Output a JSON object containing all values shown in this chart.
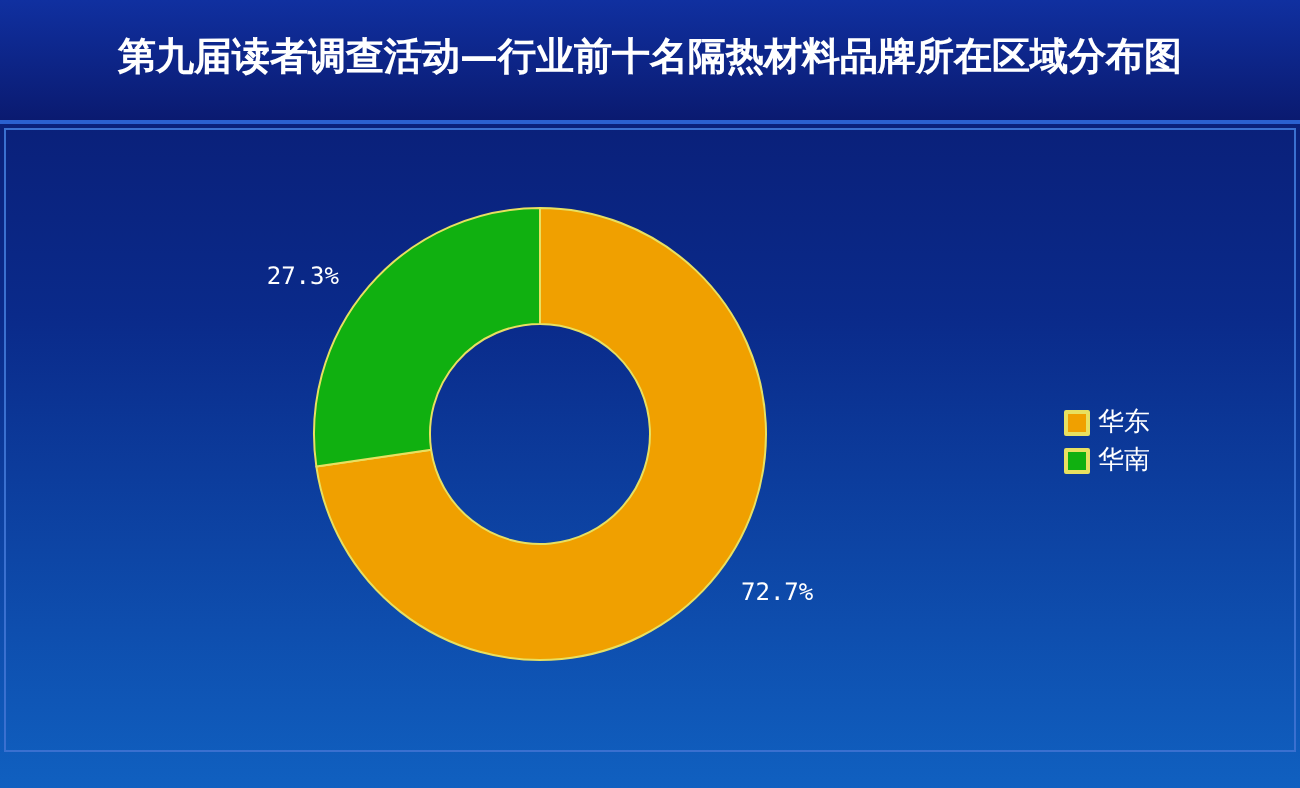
{
  "chart_data": {
    "type": "donut",
    "title": "第九届读者调查活动—行业前十名隔热材料品牌所在区域分布图",
    "categories": [
      "华东",
      "华南"
    ],
    "values": [
      72.7,
      27.3
    ],
    "colors": [
      "#f0a000",
      "#10b010"
    ],
    "value_labels": [
      "72.7%",
      "27.3%"
    ],
    "legend": "right"
  }
}
